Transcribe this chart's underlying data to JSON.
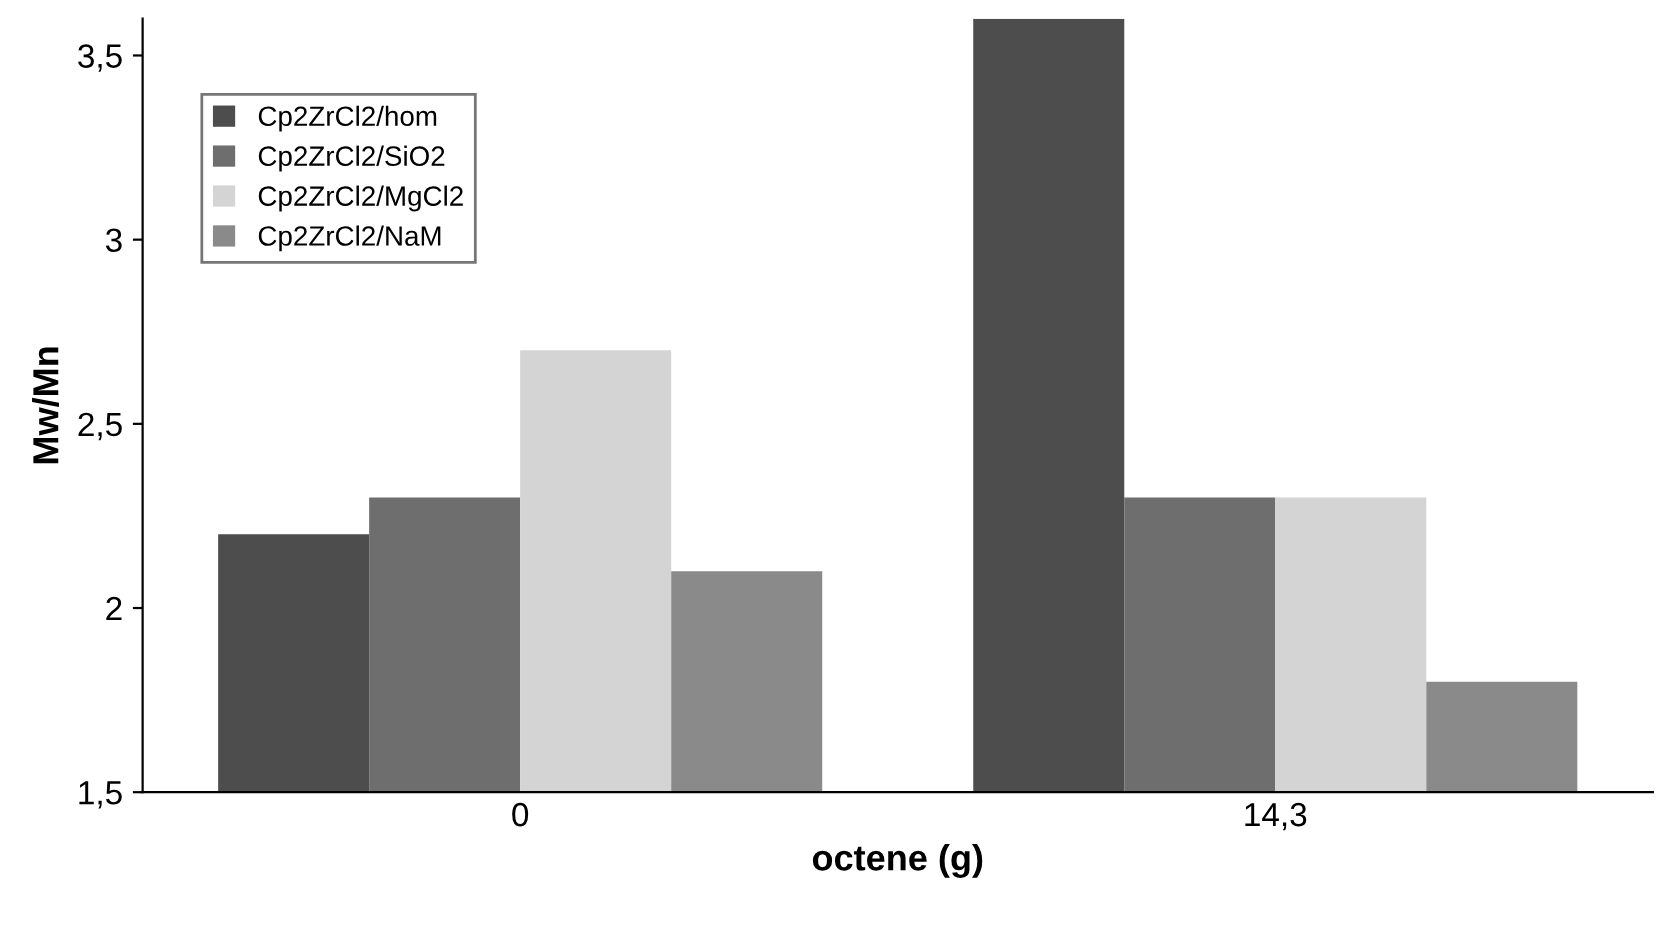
{
  "chart_data": {
    "type": "bar",
    "xlabel": "octene (g)",
    "ylabel": "Mw/Mn",
    "categories": [
      "0",
      "14,3"
    ],
    "series": [
      {
        "name": "Cp2ZrCl2/hom",
        "color": "#4d4d4d",
        "values": [
          2.2,
          3.6
        ]
      },
      {
        "name": "Cp2ZrCl2/SiO2",
        "color": "#6e6e6e",
        "values": [
          2.3,
          2.3
        ]
      },
      {
        "name": "Cp2ZrCl2/MgCl2",
        "color": "#d4d4d4",
        "values": [
          2.7,
          2.3
        ]
      },
      {
        "name": "Cp2ZrCl2/NaM",
        "color": "#8a8a8a",
        "values": [
          2.1,
          1.8
        ]
      }
    ],
    "ylim": [
      1.5,
      3.6
    ],
    "yticks": [
      {
        "value": 1.5,
        "label": "1,5"
      },
      2,
      {
        "value": 2.5,
        "label": "2,5"
      },
      3,
      {
        "value": 3.5,
        "label": "3,5"
      }
    ],
    "grid": false,
    "legend": "top left"
  }
}
